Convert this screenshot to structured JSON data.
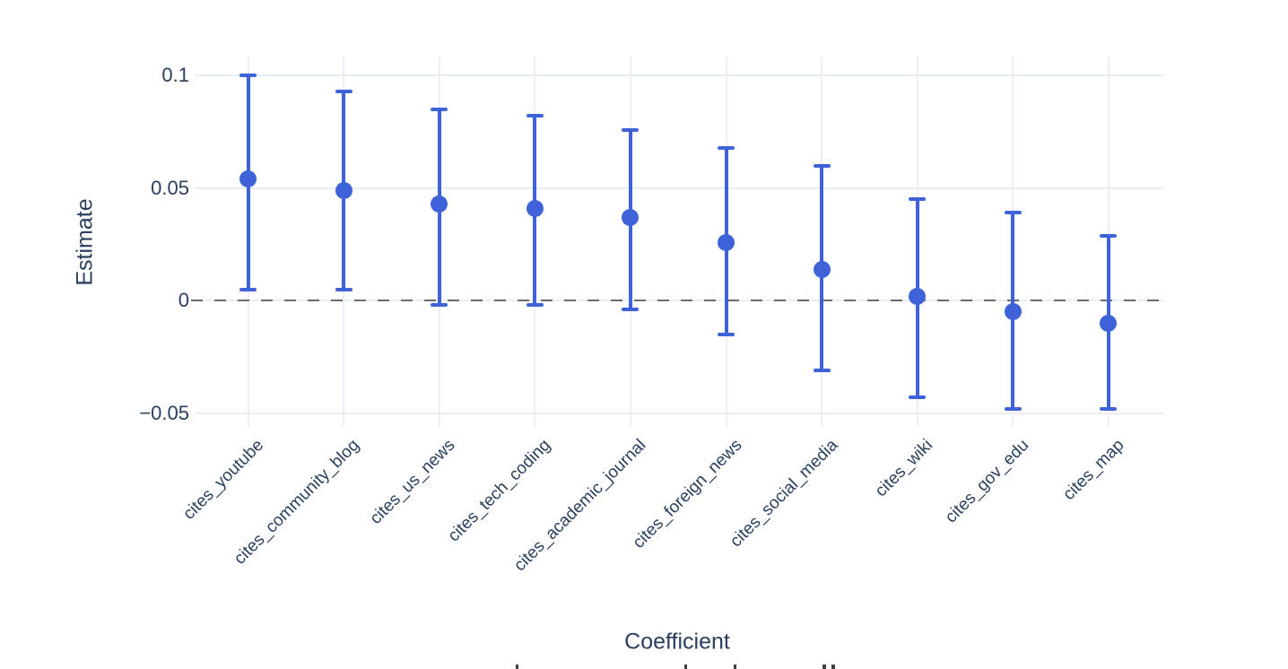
{
  "chart_data": {
    "type": "scatter",
    "subtype": "coefficient-plot-with-error-bars",
    "title": "",
    "xlabel": "Coefficient",
    "ylabel": "Estimate",
    "categories": [
      "cites_youtube",
      "cites_community_blog",
      "cites_us_news",
      "cites_tech_coding",
      "cites_academic_journal",
      "cites_foreign_news",
      "cites_social_media",
      "cites_wiki",
      "cites_gov_edu",
      "cites_map"
    ],
    "series": [
      {
        "name": "Estimate",
        "values": [
          0.054,
          0.049,
          0.043,
          0.041,
          0.037,
          0.026,
          0.014,
          0.002,
          -0.005,
          -0.01
        ],
        "ci_low": [
          0.005,
          0.005,
          -0.002,
          -0.002,
          -0.004,
          -0.015,
          -0.031,
          -0.043,
          -0.048,
          -0.048
        ],
        "ci_high": [
          0.1,
          0.093,
          0.085,
          0.082,
          0.076,
          0.068,
          0.06,
          0.045,
          0.039,
          0.029
        ]
      }
    ],
    "yticks": {
      "values": [
        0.1,
        0.05,
        0,
        -0.05
      ],
      "labels": [
        "0.1",
        "0.05",
        "0",
        "−0.05"
      ]
    },
    "ylim": [
      -0.056,
      0.108
    ],
    "grid": true,
    "legend": "none",
    "zero_line": {
      "value": 0,
      "style": "dashed",
      "color": "#6b6b6b"
    },
    "colors": {
      "point": "#3e63d9",
      "text": "#2a3f5f",
      "gridline": "#e9eef6"
    }
  }
}
